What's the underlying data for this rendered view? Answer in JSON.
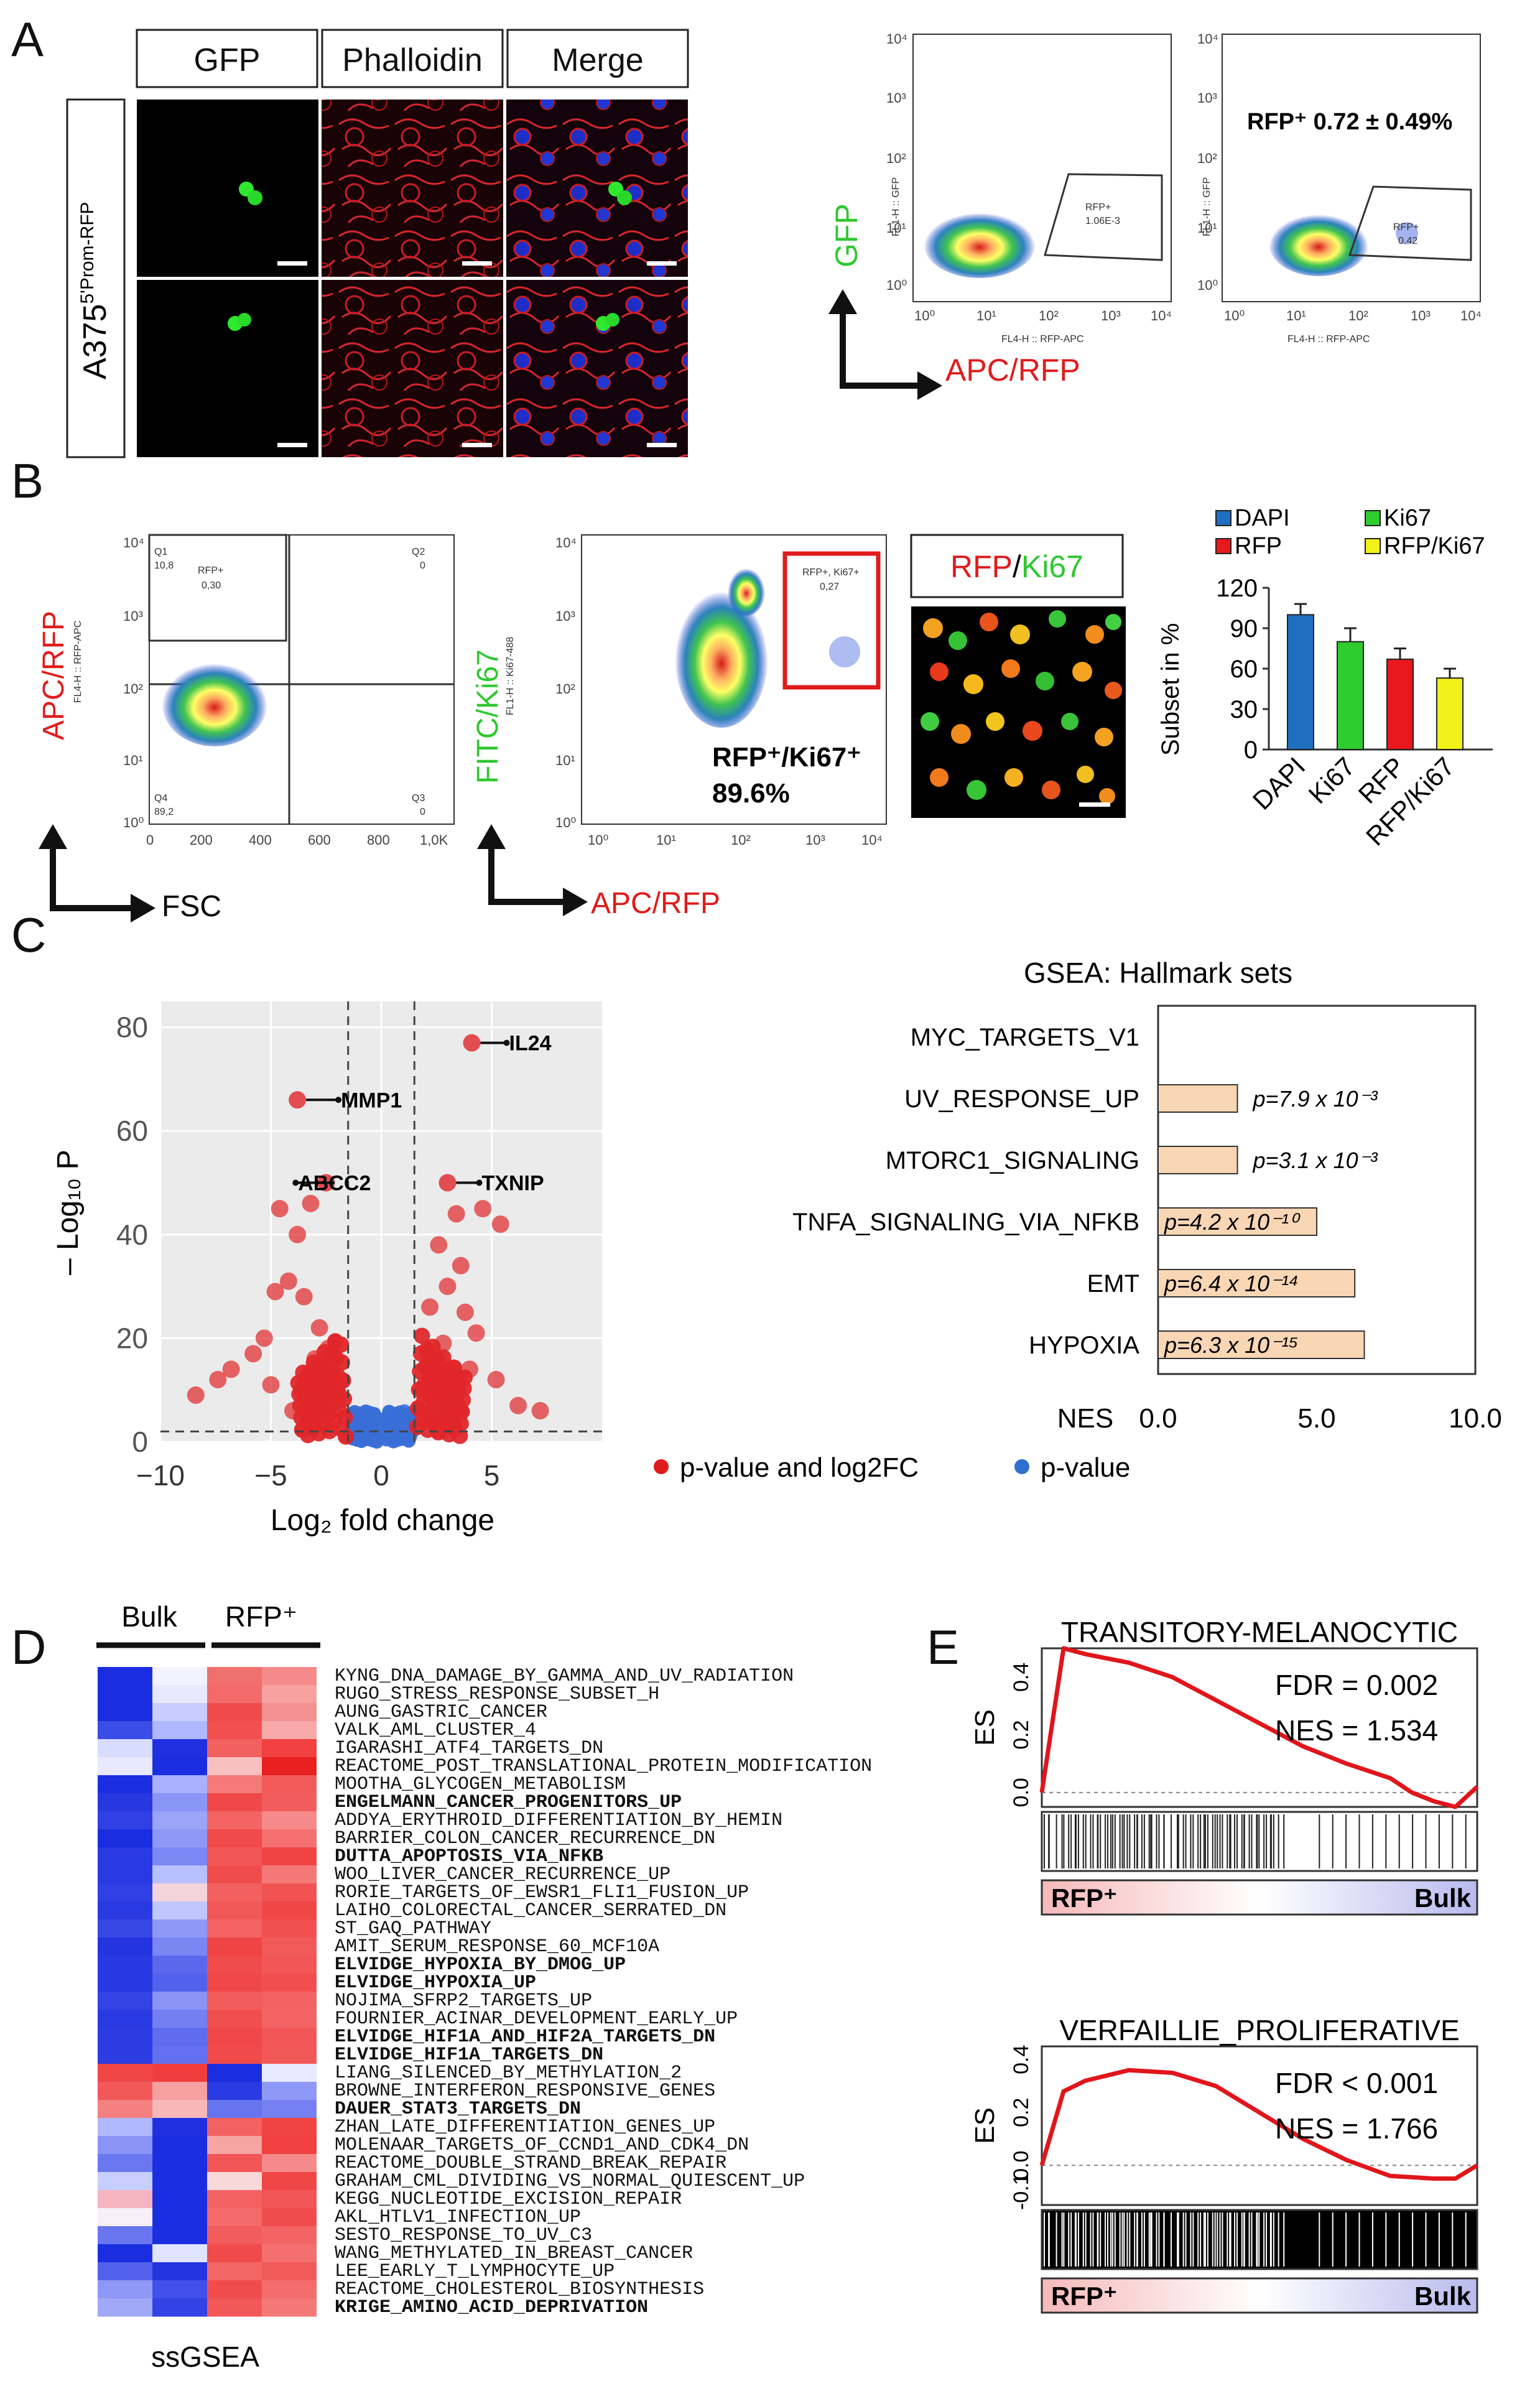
{
  "panels": {
    "A": "A",
    "B": "B",
    "C": "C",
    "D": "D",
    "E": "E"
  },
  "panelA": {
    "columns": [
      "GFP",
      "Phalloidin",
      "Merge"
    ],
    "row_label": "A375",
    "row_label_sup": "5'Prom-RFP",
    "flow1": {
      "y_axis_label": "FL1-H :: GFP",
      "x_axis_label": "FL4-H :: RFP-APC",
      "gate_name": "RFP+",
      "gate_value": "1.06E-3"
    },
    "flow2": {
      "y_axis_label": "FL1-H :: GFP",
      "x_axis_label": "FL4-H :: RFP-APC",
      "gate_name": "RFP+",
      "gate_value": "0.42",
      "annotation": "RFP⁺ 0.72 ± 0.49%"
    },
    "arrow_y_label": "GFP",
    "arrow_x_label": "APC/RFP",
    "log_ticks": [
      "10⁰",
      "10¹",
      "10²",
      "10³",
      "10⁴"
    ]
  },
  "panelB": {
    "quad": {
      "y_label_main": "APC/RFP",
      "y_label_sub": "FL4-H :: RFP-APC",
      "x_label": "FSC",
      "q1_name": "Q1",
      "q1_val": "10,8",
      "q2_name": "Q2",
      "q2_val": "0",
      "q3_name": "Q3",
      "q3_val": "0",
      "q4_name": "Q4",
      "q4_val": "89,2",
      "rfp_name": "RFP+",
      "rfp_val": "0,30",
      "x_ticks": [
        "0",
        "200",
        "400",
        "600",
        "800",
        "1,0K"
      ]
    },
    "ki67": {
      "y_label_a": "FITC/",
      "y_label_b": "Ki67",
      "y_label_sub": "FL1-H :: Ki67-488",
      "x_label": "APC/RFP",
      "gate_name": "RFP+, Ki67+",
      "gate_val": "0,27",
      "annotation_a": "RFP⁺/Ki67⁺",
      "annotation_b": "89.6%"
    },
    "image_title_a": "RFP",
    "image_title_sep": "/",
    "image_title_b": "Ki67"
  },
  "chart_data": [
    {
      "type": "bar",
      "title": "",
      "ylabel": "Subset in %",
      "categories": [
        "DAPI",
        "Ki67",
        "RFP",
        "RFP/Ki67"
      ],
      "values": [
        100,
        80,
        67,
        53
      ],
      "errors": [
        8,
        10,
        8,
        7
      ],
      "ylim": [
        0,
        120
      ],
      "yticks": [
        "0",
        "30",
        "60",
        "90",
        "120"
      ],
      "legend": [
        "DAPI",
        "Ki67",
        "RFP",
        "RFP/Ki67"
      ],
      "colors": [
        "#1f6fc0",
        "#2ecc2e",
        "#e8181c",
        "#f2f21a"
      ]
    },
    {
      "type": "scatter",
      "title": "",
      "xlabel": "Log₂ fold change",
      "ylabel": "– Log₁₀ P",
      "xlim": [
        -10,
        10
      ],
      "ylim": [
        0,
        85
      ],
      "xticks": [
        "−10",
        "−5",
        "0",
        "5"
      ],
      "yticks": [
        "0",
        "20",
        "40",
        "60",
        "80"
      ],
      "labels": [
        {
          "name": "IL24",
          "x": 4.1,
          "y": 77
        },
        {
          "name": "MMP1",
          "x": -3.8,
          "y": 66
        },
        {
          "name": "ABCC2",
          "x": -2.5,
          "y": 50
        },
        {
          "name": "TXNIP",
          "x": 3.0,
          "y": 50
        }
      ],
      "points": [
        [
          -4.6,
          45
        ],
        [
          -3.2,
          46
        ],
        [
          -3.8,
          40
        ],
        [
          -4.2,
          31
        ],
        [
          -4.8,
          29
        ],
        [
          -5.3,
          20
        ],
        [
          -5.8,
          17
        ],
        [
          -6.8,
          14
        ],
        [
          -7.4,
          12
        ],
        [
          -8.4,
          9
        ],
        [
          -3.5,
          28
        ],
        [
          -2.8,
          22
        ],
        [
          -2.4,
          18
        ],
        [
          -3.0,
          16
        ],
        [
          -2.2,
          12
        ],
        [
          -2.0,
          8
        ],
        [
          -2.6,
          6
        ],
        [
          -4.0,
          6
        ],
        [
          -3.6,
          10
        ],
        [
          -5.0,
          11
        ],
        [
          4.6,
          45
        ],
        [
          5.4,
          42
        ],
        [
          3.4,
          44
        ],
        [
          2.6,
          38
        ],
        [
          3.0,
          30
        ],
        [
          2.2,
          26
        ],
        [
          3.8,
          25
        ],
        [
          4.3,
          21
        ],
        [
          2.4,
          16
        ],
        [
          1.9,
          10
        ],
        [
          3.2,
          8
        ],
        [
          5.2,
          12
        ],
        [
          6.2,
          7
        ],
        [
          7.2,
          6
        ],
        [
          2.8,
          19
        ],
        [
          2.1,
          5
        ],
        [
          4.0,
          14
        ],
        [
          3.6,
          34
        ]
      ],
      "thresholds": {
        "x": [
          -1.5,
          1.5
        ],
        "y": 2
      },
      "legend": [
        "p-value and log2FC",
        "p-value"
      ]
    },
    {
      "type": "bar",
      "title": "GSEA: Hallmark sets",
      "xlabel": "NES",
      "categories": [
        "MYC_TARGETS_V1",
        "UV_RESPONSE_UP",
        "MTORC1_SIGNALING",
        "TNFA_SIGNALING_VIA_NFKB",
        "EMT",
        "HYPOXIA"
      ],
      "values": [
        0,
        2.5,
        2.5,
        5.0,
        6.2,
        6.5
      ],
      "p_values": [
        "",
        "p=7.9 x 10⁻³",
        "p=3.1 x 10⁻³",
        "p=4.2 x 10⁻¹⁰",
        "p=6.4 x 10⁻¹⁴",
        "p=6.3 x 10⁻¹⁵"
      ],
      "xlim": [
        0,
        10
      ],
      "xticks": [
        "0.0",
        "5.0",
        "10.0"
      ]
    },
    {
      "type": "line",
      "title": "TRANSITORY-MELANOCYTIC",
      "ylabel": "ES",
      "fdr": "FDR = 0.002",
      "nes": "NES = 1.534",
      "ylim": [
        -0.05,
        0.5
      ],
      "yticks": [
        "0.0",
        "0.2",
        "0.4"
      ],
      "bar_left": "RFP⁺",
      "bar_right": "Bulk",
      "x": [
        0,
        0.05,
        0.1,
        0.2,
        0.3,
        0.4,
        0.5,
        0.6,
        0.7,
        0.8,
        0.85,
        0.9,
        0.95,
        1.0
      ],
      "y": [
        0,
        0.5,
        0.48,
        0.45,
        0.4,
        0.32,
        0.24,
        0.16,
        0.1,
        0.05,
        0.0,
        -0.03,
        -0.05,
        0.02
      ]
    },
    {
      "type": "line",
      "title": "VERFAILLIE_PROLIFERATIVE",
      "ylabel": "ES",
      "fdr": "FDR < 0.001",
      "nes": "NES = 1.766",
      "ylim": [
        -0.15,
        0.45
      ],
      "yticks": [
        "-0.1",
        "0.0",
        "0.2",
        "0.4"
      ],
      "bar_left": "RFP⁺",
      "bar_right": "Bulk",
      "x": [
        0,
        0.05,
        0.1,
        0.2,
        0.3,
        0.4,
        0.5,
        0.6,
        0.7,
        0.8,
        0.9,
        0.95,
        1.0
      ],
      "y": [
        0,
        0.28,
        0.32,
        0.36,
        0.35,
        0.3,
        0.2,
        0.1,
        0.02,
        -0.04,
        -0.05,
        -0.05,
        0.0
      ]
    }
  ],
  "panelC": {
    "volcano_legend_a": "p-value and log2FC",
    "volcano_legend_b": "p-value"
  },
  "panelD": {
    "col_group_a": "Bulk",
    "col_group_b": "RFP⁺",
    "footer": "ssGSEA",
    "gene_sets": [
      {
        "name": "KYNG_DNA_DAMAGE_BY_GAMMA_AND_UV_RADIATION",
        "bold": false,
        "cells": [
          "#1a2ee0",
          "#f3f3ff",
          "#f07070",
          "#f58a8a"
        ]
      },
      {
        "name": "RUGO_STRESS_RESPONSE_SUBSET_H",
        "bold": false,
        "cells": [
          "#1a2ee0",
          "#e8e8ff",
          "#f46a6a",
          "#f6a0a0"
        ]
      },
      {
        "name": "AUNG_GASTRIC_CANCER",
        "bold": false,
        "cells": [
          "#1a2ee0",
          "#c8ccff",
          "#f04a4a",
          "#f59090"
        ]
      },
      {
        "name": "VALK_AML_CLUSTER_4",
        "bold": false,
        "cells": [
          "#3a4ee6",
          "#b0b8ff",
          "#f25050",
          "#f7a8a8"
        ]
      },
      {
        "name": "IGARASHI_ATF4_TARGETS_DN",
        "bold": false,
        "cells": [
          "#d8dcff",
          "#2030e0",
          "#f36060",
          "#f04040"
        ]
      },
      {
        "name": "REACTOME_POST_TRANSLATIONAL_PROTEIN_MODIFICATION",
        "bold": false,
        "cells": [
          "#e8e8ff",
          "#1a2ee0",
          "#f8c0c0",
          "#e82020"
        ]
      },
      {
        "name": "MOOTHA_GLYCOGEN_METABOLISM",
        "bold": false,
        "cells": [
          "#1a2ee0",
          "#a8b0ff",
          "#f57a7a",
          "#f25a5a"
        ]
      },
      {
        "name": "ENGELMANN_CANCER_PROGENITORS_UP",
        "bold": true,
        "cells": [
          "#2838e0",
          "#8a96f6",
          "#f04848",
          "#f25c5c"
        ]
      },
      {
        "name": "ADDYA_ERYTHROID_DIFFERENTIATION_BY_HEMIN",
        "bold": false,
        "cells": [
          "#3040e4",
          "#9aa4f8",
          "#f36464",
          "#f68a8a"
        ]
      },
      {
        "name": "BARRIER_COLON_CANCER_RECURRENCE_DN",
        "bold": false,
        "cells": [
          "#1a2ee0",
          "#8e98f6",
          "#f04a4a",
          "#f57070"
        ]
      },
      {
        "name": "DUTTA_APOPTOSIS_VIA_NFKB",
        "bold": true,
        "cells": [
          "#2a3ae2",
          "#7c88f4",
          "#f25656",
          "#f04444"
        ]
      },
      {
        "name": "WOO_LIVER_CANCER_RECURRENCE_UP",
        "bold": false,
        "cells": [
          "#2a3ae2",
          "#b8c0ff",
          "#f14c4c",
          "#f57878"
        ]
      },
      {
        "name": "RORIE_TARGETS_OF_EWSR1_FLI1_FUSION_UP",
        "bold": false,
        "cells": [
          "#3040e4",
          "#f4d4dc",
          "#f36060",
          "#f15252"
        ]
      },
      {
        "name": "LAIHO_COLORECTAL_CANCER_SERRATED_DN",
        "bold": false,
        "cells": [
          "#2a3ae2",
          "#c0c6ff",
          "#f25858",
          "#f04646"
        ]
      },
      {
        "name": "ST_GAQ_PATHWAY",
        "bold": false,
        "cells": [
          "#3848e6",
          "#8e98f6",
          "#f36464",
          "#f15050"
        ]
      },
      {
        "name": "AMIT_SERUM_RESPONSE_60_MCF10A",
        "bold": false,
        "cells": [
          "#2434e0",
          "#7a86f2",
          "#f04444",
          "#f25a5a"
        ]
      },
      {
        "name": "ELVIDGE_HYPOXIA_BY_DMOG_UP",
        "bold": true,
        "cells": [
          "#2838e2",
          "#5a68ee",
          "#f14c4c",
          "#f25656"
        ]
      },
      {
        "name": "ELVIDGE_HYPOXIA_UP",
        "bold": true,
        "cells": [
          "#2838e2",
          "#5262ec",
          "#f04848",
          "#f14e4e"
        ]
      },
      {
        "name": "NOJIMA_SFRP2_TARGETS_UP",
        "bold": false,
        "cells": [
          "#3444e4",
          "#8a94f6",
          "#f25c5c",
          "#f36262"
        ]
      },
      {
        "name": "FOURNIER_ACINAR_DEVELOPMENT_EARLY_UP",
        "bold": false,
        "cells": [
          "#2a3ae2",
          "#7480f2",
          "#f14e4e",
          "#f36464"
        ]
      },
      {
        "name": "ELVIDGE_HIF1A_AND_HIF2A_TARGETS_DN",
        "bold": true,
        "cells": [
          "#2c3ce2",
          "#5f6cee",
          "#f04848",
          "#f25656"
        ]
      },
      {
        "name": "ELVIDGE_HIF1A_TARGETS_DN",
        "bold": true,
        "cells": [
          "#2c3ce2",
          "#6370ef",
          "#f14a4a",
          "#f25858"
        ]
      },
      {
        "name": "LIANG_SILENCED_BY_METHYLATION_2",
        "bold": false,
        "cells": [
          "#f04646",
          "#f03c3c",
          "#1a2ee0",
          "#e8eaff"
        ]
      },
      {
        "name": "BROWNE_INTERFERON_RESPONSIVE_GENES",
        "bold": false,
        "cells": [
          "#f25858",
          "#f6a0a0",
          "#2a3ae2",
          "#8e98f6"
        ]
      },
      {
        "name": "DAUER_STAT3_TARGETS_DN",
        "bold": true,
        "cells": [
          "#f58080",
          "#f8b8b8",
          "#6674f0",
          "#7680f2"
        ]
      },
      {
        "name": "ZHAN_LATE_DIFFERENTIATION_GENES_UP",
        "bold": false,
        "cells": [
          "#b0b8ff",
          "#2030e0",
          "#f36262",
          "#f04444"
        ]
      },
      {
        "name": "MOLENAAR_TARGETS_OF_CCND1_AND_CDK4_DN",
        "bold": false,
        "cells": [
          "#8a94f6",
          "#1a2ee0",
          "#f6a4a4",
          "#f04040"
        ]
      },
      {
        "name": "REACTOME_DOUBLE_STRAND_BREAK_REPAIR",
        "bold": false,
        "cells": [
          "#6a78f0",
          "#1a2ee0",
          "#f25656",
          "#f68a8a"
        ]
      },
      {
        "name": "GRAHAM_CML_DIVIDING_VS_NORMAL_QUIESCENT_UP",
        "bold": false,
        "cells": [
          "#c8ceff",
          "#1a2ee0",
          "#f8d8d8",
          "#f04646"
        ]
      },
      {
        "name": "KEGG_NUCLEOTIDE_EXCISION_REPAIR",
        "bold": false,
        "cells": [
          "#f4b4c0",
          "#1a2ee0",
          "#f36262",
          "#f25656"
        ]
      },
      {
        "name": "AKL_HTLV1_INFECTION_UP",
        "bold": false,
        "cells": [
          "#f6f0f8",
          "#1a2ee0",
          "#f46a6a",
          "#f14c4c"
        ]
      },
      {
        "name": "SESTO_RESPONSE_TO_UV_C3",
        "bold": false,
        "cells": [
          "#6876f0",
          "#1a2ee0",
          "#f25c5c",
          "#f36464"
        ]
      },
      {
        "name": "WANG_METHYLATED_IN_BREAST_CANCER",
        "bold": false,
        "cells": [
          "#1a2ee0",
          "#e0e4ff",
          "#f04a4a",
          "#f47070"
        ]
      },
      {
        "name": "LEE_EARLY_T_LYMPHOCYTE_UP",
        "bold": false,
        "cells": [
          "#5260ec",
          "#2434e0",
          "#f36666",
          "#f25a5a"
        ]
      },
      {
        "name": "REACTOME_CHOLESTEROL_BIOSYNTHESIS",
        "bold": false,
        "cells": [
          "#8e98f6",
          "#4050e8",
          "#f14c4c",
          "#f46c6c"
        ]
      },
      {
        "name": "KRIGE_AMINO_ACID_DEPRIVATION",
        "bold": true,
        "cells": [
          "#a0a8f8",
          "#3242e4",
          "#f25858",
          "#f57878"
        ]
      }
    ]
  }
}
